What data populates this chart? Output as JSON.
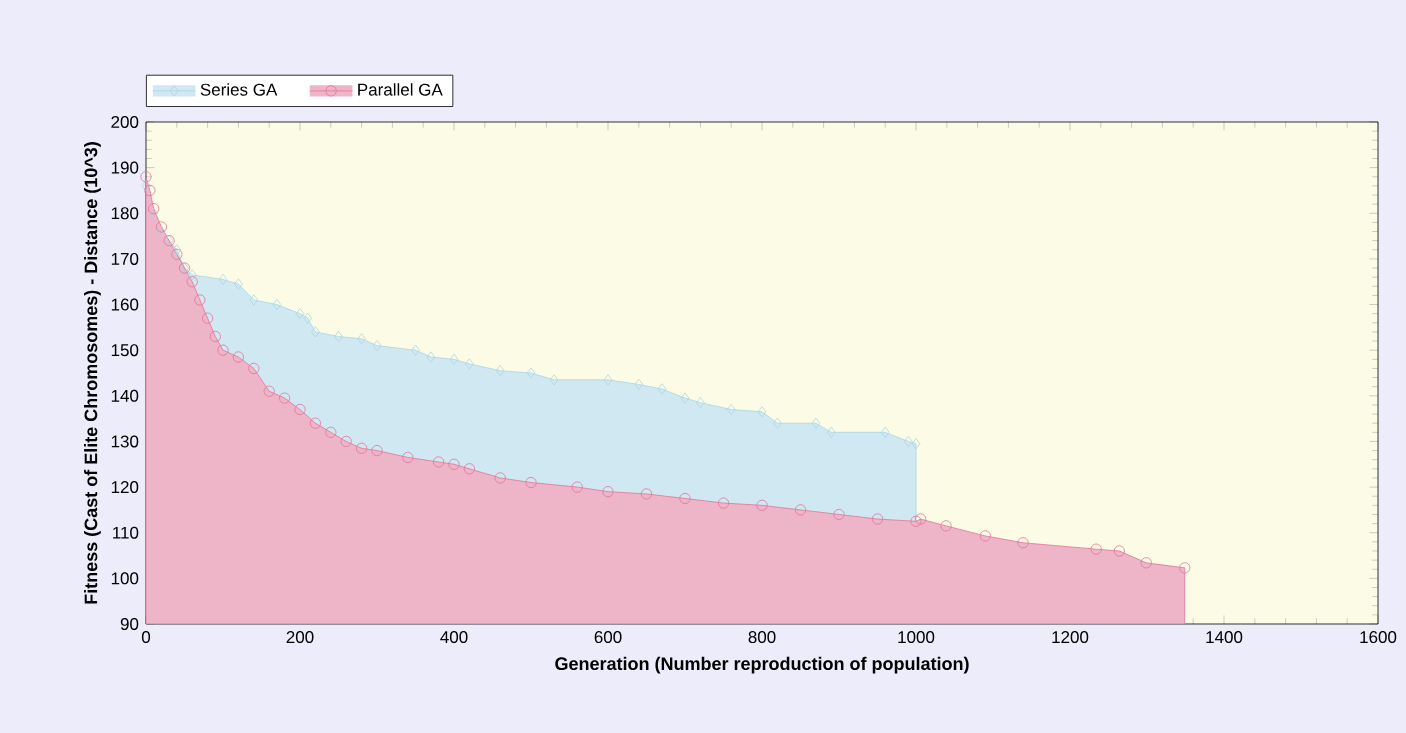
{
  "chart_data": {
    "type": "area",
    "xlabel": "Generation (Number reproduction of population)",
    "ylabel": "Fitness (Cast of Elite Chromosomes) - Distance (10^3)",
    "xlim": [
      0,
      1600
    ],
    "ylim": [
      90,
      200
    ],
    "xticks": [
      0,
      200,
      400,
      600,
      800,
      1000,
      1200,
      1400,
      1600
    ],
    "yticks": [
      90,
      100,
      110,
      120,
      130,
      140,
      150,
      160,
      170,
      180,
      190,
      200
    ],
    "grid": false,
    "legend": "top left",
    "line_style": "solid",
    "series": [
      {
        "name": "Series GA",
        "color": "#a9d6e5",
        "marker": "diamond",
        "x": [
          0,
          10,
          20,
          30,
          40,
          50,
          60,
          100,
          120,
          140,
          170,
          200,
          210,
          220,
          250,
          280,
          300,
          350,
          370,
          400,
          420,
          460,
          500,
          530,
          600,
          640,
          670,
          700,
          720,
          760,
          800,
          820,
          870,
          890,
          960,
          990,
          1000
        ],
        "values": [
          186,
          180,
          176,
          174,
          172,
          168,
          166.5,
          165.5,
          164.5,
          161,
          160,
          158,
          157,
          154,
          153,
          152.5,
          151,
          150,
          148.5,
          148,
          147,
          145.5,
          145,
          143.5,
          143.5,
          142.5,
          141.5,
          139.5,
          138.5,
          137,
          136.5,
          134,
          134,
          132,
          132,
          130,
          129.5
        ]
      },
      {
        "name": "Parallel GA",
        "color": "#e0769a",
        "marker": "circle",
        "x": [
          0,
          5,
          10,
          20,
          30,
          40,
          50,
          60,
          70,
          80,
          90,
          100,
          120,
          140,
          160,
          180,
          200,
          220,
          240,
          260,
          280,
          300,
          340,
          380,
          400,
          420,
          460,
          500,
          560,
          600,
          650,
          700,
          750,
          800,
          850,
          900,
          950,
          1000,
          1006,
          1039,
          1090,
          1139,
          1234,
          1264,
          1299,
          1349
        ],
        "values": [
          188,
          185,
          181,
          177,
          174,
          171,
          168,
          165,
          161,
          157,
          153,
          150,
          148.5,
          146,
          141,
          139.5,
          137,
          134,
          132,
          130,
          128.5,
          128,
          126.5,
          125.5,
          125,
          124,
          122,
          121,
          120,
          119,
          118.5,
          117.5,
          116.5,
          116,
          115,
          114,
          113,
          112.5,
          113,
          111.5,
          109.3,
          107.8,
          106.4,
          106,
          103.4,
          102.3
        ]
      }
    ]
  }
}
